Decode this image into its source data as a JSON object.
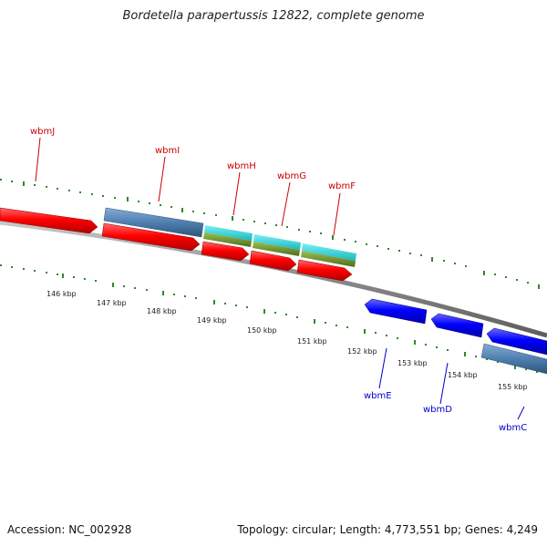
{
  "title": "Bordetella parapertussis 12822, complete genome",
  "footer": {
    "accession": "Accession: NC_002928",
    "summary": "Topology: circular; Length: 4,773,551 bp; Genes: 4,249"
  },
  "colors": {
    "forward_gene": "#ff0000",
    "reverse_gene": "#0000ff",
    "gene_cluster": "#4f7fb0",
    "cyan_track": "#22d0d8",
    "olive_track": "#6b8f2c",
    "backbone": "#8a8a8a",
    "ticks": "#2a8a2a",
    "label_forward": "#cc0000",
    "label_reverse": "#0000cc"
  },
  "scale_labels": [
    "146 kbp",
    "147 kbp",
    "148 kbp",
    "149 kbp",
    "150 kbp",
    "151 kbp",
    "152 kbp",
    "153 kbp",
    "154 kbp",
    "155 kbp"
  ],
  "gene_labels": [
    {
      "name": "wbmJ",
      "strand": "forward"
    },
    {
      "name": "wbmI",
      "strand": "forward"
    },
    {
      "name": "wbmH",
      "strand": "forward"
    },
    {
      "name": "wbmG",
      "strand": "forward"
    },
    {
      "name": "wbmF",
      "strand": "forward"
    },
    {
      "name": "wbmE",
      "strand": "reverse"
    },
    {
      "name": "wbmD",
      "strand": "reverse"
    },
    {
      "name": "wbmC",
      "strand": "reverse"
    }
  ]
}
